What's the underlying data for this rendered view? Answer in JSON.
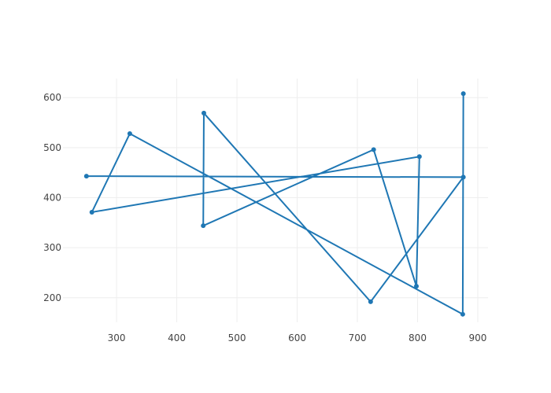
{
  "chart_data": {
    "type": "line",
    "color": "#1f77b4",
    "grid": true,
    "x": [
      250,
      876,
      722,
      445,
      444,
      727,
      798,
      803,
      259,
      322,
      875,
      876
    ],
    "values": [
      443,
      441,
      192,
      569,
      344,
      496,
      223,
      482,
      371,
      528,
      167,
      608
    ],
    "xlim": [
      211,
      917
    ],
    "ylim": [
      151,
      638
    ],
    "xticks": [
      300,
      400,
      500,
      600,
      700,
      800,
      900
    ],
    "yticks": [
      200,
      300,
      400,
      500,
      600
    ]
  }
}
